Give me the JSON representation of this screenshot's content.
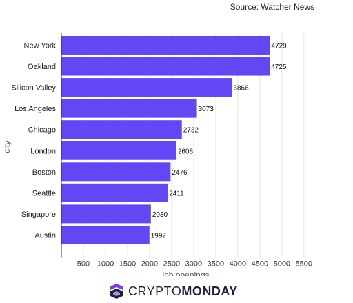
{
  "source": "Source: Watcher News",
  "logo": {
    "part1": "CRYPTO",
    "part2": "MONDAY"
  },
  "colors": {
    "bar": "#6347f5",
    "logo_purple": "#7b3fe4",
    "logo_dark": "#1f1f3a"
  },
  "chart_data": {
    "type": "bar",
    "orientation": "horizontal",
    "categories": [
      "New York",
      "Oakland",
      "Silicon Valley",
      "Los Angeles",
      "Chicago",
      "London",
      "Boston",
      "Seattle",
      "Singapore",
      "Austin"
    ],
    "values": [
      4729,
      4725,
      3868,
      3073,
      2732,
      2608,
      2476,
      2411,
      2030,
      1997
    ],
    "xlabel": "job openings",
    "ylabel": "city",
    "xlim": [
      0,
      5800
    ],
    "xticks": [
      500,
      1000,
      1500,
      2000,
      2500,
      3000,
      3500,
      4000,
      4500,
      5000,
      5500
    ],
    "grid": "vertical"
  }
}
